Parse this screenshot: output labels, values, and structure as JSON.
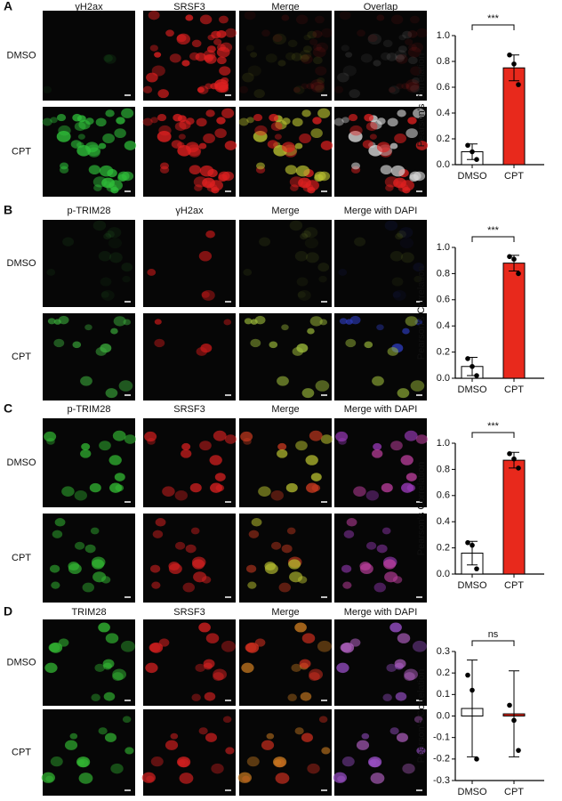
{
  "panels": [
    {
      "letter": "A",
      "columns": [
        "γH2ax",
        "SRSF3",
        "Merge",
        "Overlap"
      ],
      "rows": [
        "DMSO",
        "CPT"
      ]
    },
    {
      "letter": "B",
      "columns": [
        "p-TRIM28",
        "γH2ax",
        "Merge",
        "Merge with DAPI"
      ],
      "rows": [
        "DMSO",
        "CPT"
      ]
    },
    {
      "letter": "C",
      "columns": [
        "p-TRIM28",
        "SRSF3",
        "Merge",
        "Merge with DAPI"
      ],
      "rows": [
        "DMSO",
        "CPT"
      ]
    },
    {
      "letter": "D",
      "columns": [
        "TRIM28",
        "SRSF3",
        "Merge",
        "Merge with DAPI"
      ],
      "rows": [
        "DMSO",
        "CPT"
      ]
    }
  ],
  "chart_data": [
    {
      "type": "bar",
      "ylabel": "Pearson's Correlation",
      "categories": [
        "DMSO",
        "CPT"
      ],
      "values": [
        0.1,
        0.75
      ],
      "errors": [
        0.06,
        0.1
      ],
      "points": [
        [
          0.15,
          0.1,
          0.04
        ],
        [
          0.85,
          0.78,
          0.62
        ]
      ],
      "colors": [
        "#ffffff",
        "#e8291c"
      ],
      "annotation": "***",
      "ylim": [
        0,
        1
      ],
      "yticks": [
        {
          "value": 0,
          "label": "0.0"
        },
        0.2,
        0.4,
        0.6,
        0.8,
        {
          "value": 1,
          "label": "1.0"
        }
      ]
    },
    {
      "type": "bar",
      "ylabel": "Pearson's Correlation",
      "categories": [
        "DMSO",
        "CPT"
      ],
      "values": [
        0.09,
        0.88
      ],
      "errors": [
        0.07,
        0.06
      ],
      "points": [
        [
          0.15,
          0.09,
          0.02
        ],
        [
          0.93,
          0.91,
          0.8
        ]
      ],
      "colors": [
        "#ffffff",
        "#e8291c"
      ],
      "annotation": "***",
      "ylim": [
        0,
        1
      ],
      "yticks": [
        {
          "value": 0,
          "label": "0.0"
        },
        0.2,
        0.4,
        0.6,
        0.8,
        {
          "value": 1,
          "label": "1.0"
        }
      ]
    },
    {
      "type": "bar",
      "ylabel": "Pearson's Correlation",
      "categories": [
        "DMSO",
        "CPT"
      ],
      "values": [
        0.16,
        0.87
      ],
      "errors": [
        0.09,
        0.06
      ],
      "points": [
        [
          0.24,
          0.22,
          0.04
        ],
        [
          0.92,
          0.88,
          0.81
        ]
      ],
      "colors": [
        "#ffffff",
        "#e8291c"
      ],
      "annotation": "***",
      "ylim": [
        0,
        1
      ],
      "yticks": [
        {
          "value": 0,
          "label": "0.0"
        },
        0.2,
        0.4,
        0.6,
        0.8,
        {
          "value": 1,
          "label": "1.0"
        }
      ]
    },
    {
      "type": "bar",
      "ylabel": "Pearson's Correlation",
      "categories": [
        "DMSO",
        "CPT"
      ],
      "values": [
        0.035,
        0.01
      ],
      "errors": [
        0.225,
        0.2
      ],
      "points": [
        [
          0.19,
          0.12,
          -0.2
        ],
        [
          0.05,
          -0.02,
          -0.16
        ]
      ],
      "colors": [
        "#ffffff",
        "#e8291c"
      ],
      "annotation": "ns",
      "ylim": [
        -0.3,
        0.3
      ],
      "yticks": [
        -0.3,
        -0.2,
        -0.1,
        {
          "value": 0,
          "label": "0.0"
        },
        0.1,
        0.2,
        0.3
      ]
    }
  ]
}
